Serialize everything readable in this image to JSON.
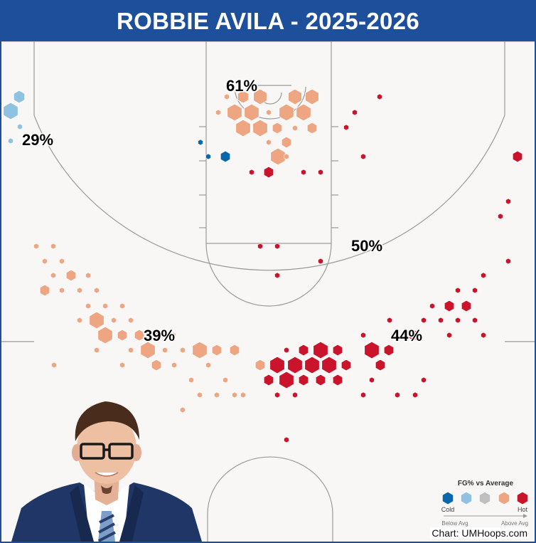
{
  "title": "ROBBIE AVILA - 2025-2026",
  "credit": "Chart: UMHoops.com",
  "colors": {
    "cold": "#0a68aa",
    "below": "#8fc1e0",
    "avg": "#c0c0c0",
    "above": "#eea582",
    "hot": "#c9142b"
  },
  "legend": {
    "title": "FG% vs Average",
    "cold_label": "Cold",
    "hot_label": "Hot",
    "below_label": "Below Avg",
    "above_label": "Above Avg"
  },
  "chart_data": {
    "type": "shot-chart (hexbin)",
    "player": "Robbie Avila",
    "season": "2025-2026",
    "zone_fg": [
      {
        "zone": "paint",
        "label": "61%"
      },
      {
        "zone": "left corner three",
        "label": "29%"
      },
      {
        "zone": "right midrange",
        "label": "50%"
      },
      {
        "zone": "left wing three",
        "label": "39%"
      },
      {
        "zone": "top/right three",
        "label": "44%"
      }
    ],
    "color_scale": [
      "Cold",
      "Below Avg",
      "Average",
      "Above Avg",
      "Hot"
    ]
  }
}
